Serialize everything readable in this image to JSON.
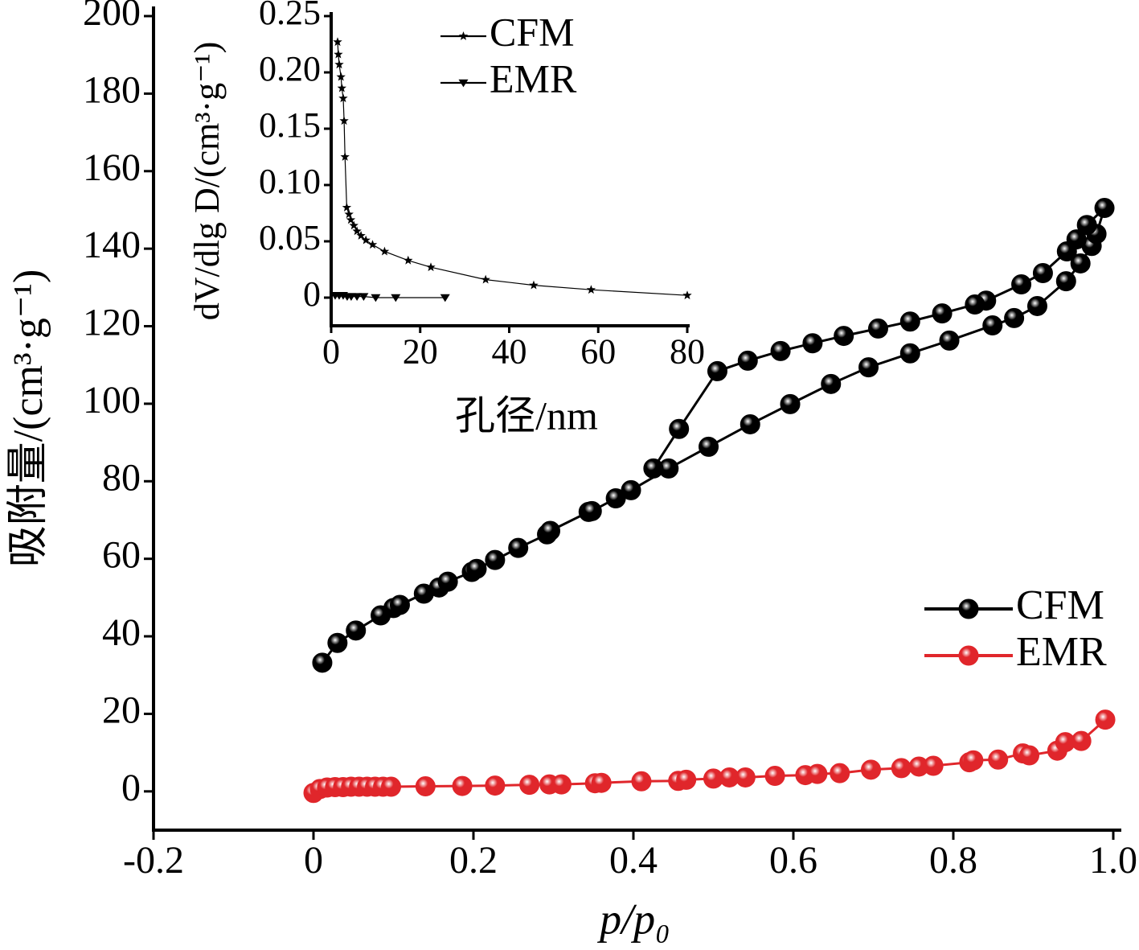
{
  "chart_data": [
    {
      "type": "line",
      "x_label": "p/p₀",
      "y_label": "吸附量/(cm³·g⁻¹)",
      "xlim": [
        -0.2,
        1.0
      ],
      "xticks": [
        -0.2,
        0,
        0.2,
        0.4,
        0.6,
        0.8,
        {
          "value": 1,
          "label": "1.0"
        }
      ],
      "ylim": [
        -10,
        200
      ],
      "yticks": [
        0,
        20,
        40,
        60,
        80,
        100,
        120,
        140,
        160,
        180,
        200
      ],
      "series": [
        {
          "name": "CFM",
          "color": "#000000",
          "marker": "sphere",
          "x": [
            0.011,
            0.03,
            0.053,
            0.084,
            0.1,
            0.108,
            0.138,
            0.157,
            0.168,
            0.198,
            0.204,
            0.227,
            0.256,
            0.292,
            0.296,
            0.344,
            0.348,
            0.378,
            0.397,
            0.444,
            0.494,
            0.546,
            0.596,
            0.647,
            0.694,
            0.746,
            0.795,
            0.849,
            0.876,
            0.905,
            0.941,
            0.959,
            0.973,
            0.979,
            0.989,
            0.967,
            0.954,
            0.942,
            0.912,
            0.885,
            0.841,
            0.827,
            0.786,
            0.746,
            0.706,
            0.663,
            0.624,
            0.584,
            0.543,
            0.505,
            0.457,
            0.425
          ],
          "values": [
            33.2,
            38.3,
            41.5,
            45.4,
            47.3,
            48.1,
            51,
            52.6,
            54.1,
            56.6,
            57.4,
            59.7,
            62.8,
            66.3,
            67.2,
            72.1,
            72.3,
            75.6,
            77.7,
            83.3,
            88.9,
            94.7,
            99.9,
            105.1,
            109.4,
            113,
            116.3,
            120.2,
            122.1,
            125.2,
            131.6,
            136.2,
            140.7,
            143.8,
            150.5,
            146.1,
            142.4,
            139.3,
            133.7,
            130.8,
            126.6,
            125.6,
            123.3,
            121.2,
            119.4,
            117.5,
            115.6,
            113.6,
            111.1,
            108.4,
            93.5,
            83.3
          ]
        },
        {
          "name": "EMR",
          "color": "#e0262b",
          "marker": "sphere",
          "x": [
            0,
            0.008,
            0.017,
            0.027,
            0.037,
            0.047,
            0.057,
            0.067,
            0.077,
            0.087,
            0.097,
            0.14,
            0.186,
            0.227,
            0.27,
            0.295,
            0.31,
            0.352,
            0.36,
            0.41,
            0.456,
            0.466,
            0.5,
            0.52,
            0.54,
            0.577,
            0.615,
            0.63,
            0.658,
            0.697,
            0.735,
            0.757,
            0.775,
            0.82,
            0.825,
            0.856,
            0.887,
            0.895,
            0.93,
            0.94,
            0.96,
            0.99
          ],
          "values": [
            -0.4,
            0.6,
            1,
            1.1,
            1.1,
            1.2,
            1.2,
            1.2,
            1.2,
            1.2,
            1.2,
            1.3,
            1.4,
            1.5,
            1.7,
            1.8,
            1.8,
            2.1,
            2.2,
            2.6,
            2.7,
            3,
            3.3,
            3.6,
            3.6,
            4,
            4.2,
            4.5,
            4.7,
            5.6,
            6,
            6.4,
            6.6,
            7.5,
            8,
            8.2,
            9.8,
            9.3,
            10.5,
            12.7,
            13,
            18.5
          ]
        }
      ]
    },
    {
      "type": "line",
      "x_label": "孔径/nm",
      "y_label": "dV/dlg D/(cm³·g⁻¹)",
      "xlim": [
        0,
        80
      ],
      "xticks": [
        0,
        20,
        40,
        60,
        80
      ],
      "ylim": [
        -0.025,
        0.25
      ],
      "yticks": [
        0,
        0.05,
        {
          "value": 0.1,
          "label": "0.10"
        },
        0.15,
        {
          "value": 0.2,
          "label": "0.20"
        },
        0.25
      ],
      "series": [
        {
          "name": "CFM",
          "color": "#000000",
          "marker": "star",
          "x": [
            1.45,
            1.6,
            1.8,
            2.2,
            2.4,
            2.7,
            2.9,
            3.1,
            3.5,
            4,
            4.4,
            5.1,
            5.8,
            6.7,
            7.8,
            9.3,
            12,
            17.3,
            22.4,
            34.7,
            45.5,
            58.4,
            80
          ],
          "values": [
            0.227,
            0.216,
            0.207,
            0.196,
            0.186,
            0.177,
            0.157,
            0.125,
            0.08,
            0.074,
            0.069,
            0.064,
            0.059,
            0.055,
            0.051,
            0.047,
            0.041,
            0.033,
            0.027,
            0.016,
            0.011,
            0.007,
            0.002
          ]
        },
        {
          "name": "EMR",
          "color": "#000000",
          "marker": "triangle-down",
          "x": [
            0.9,
            1.8,
            2.7,
            3.6,
            4.5,
            5.8,
            7.3,
            10,
            14.5,
            25.6
          ],
          "values": [
            0.002,
            0.002,
            0.002,
            0.001,
            0.001,
            0.001,
            0.001,
            0,
            0,
            0
          ]
        }
      ]
    }
  ]
}
